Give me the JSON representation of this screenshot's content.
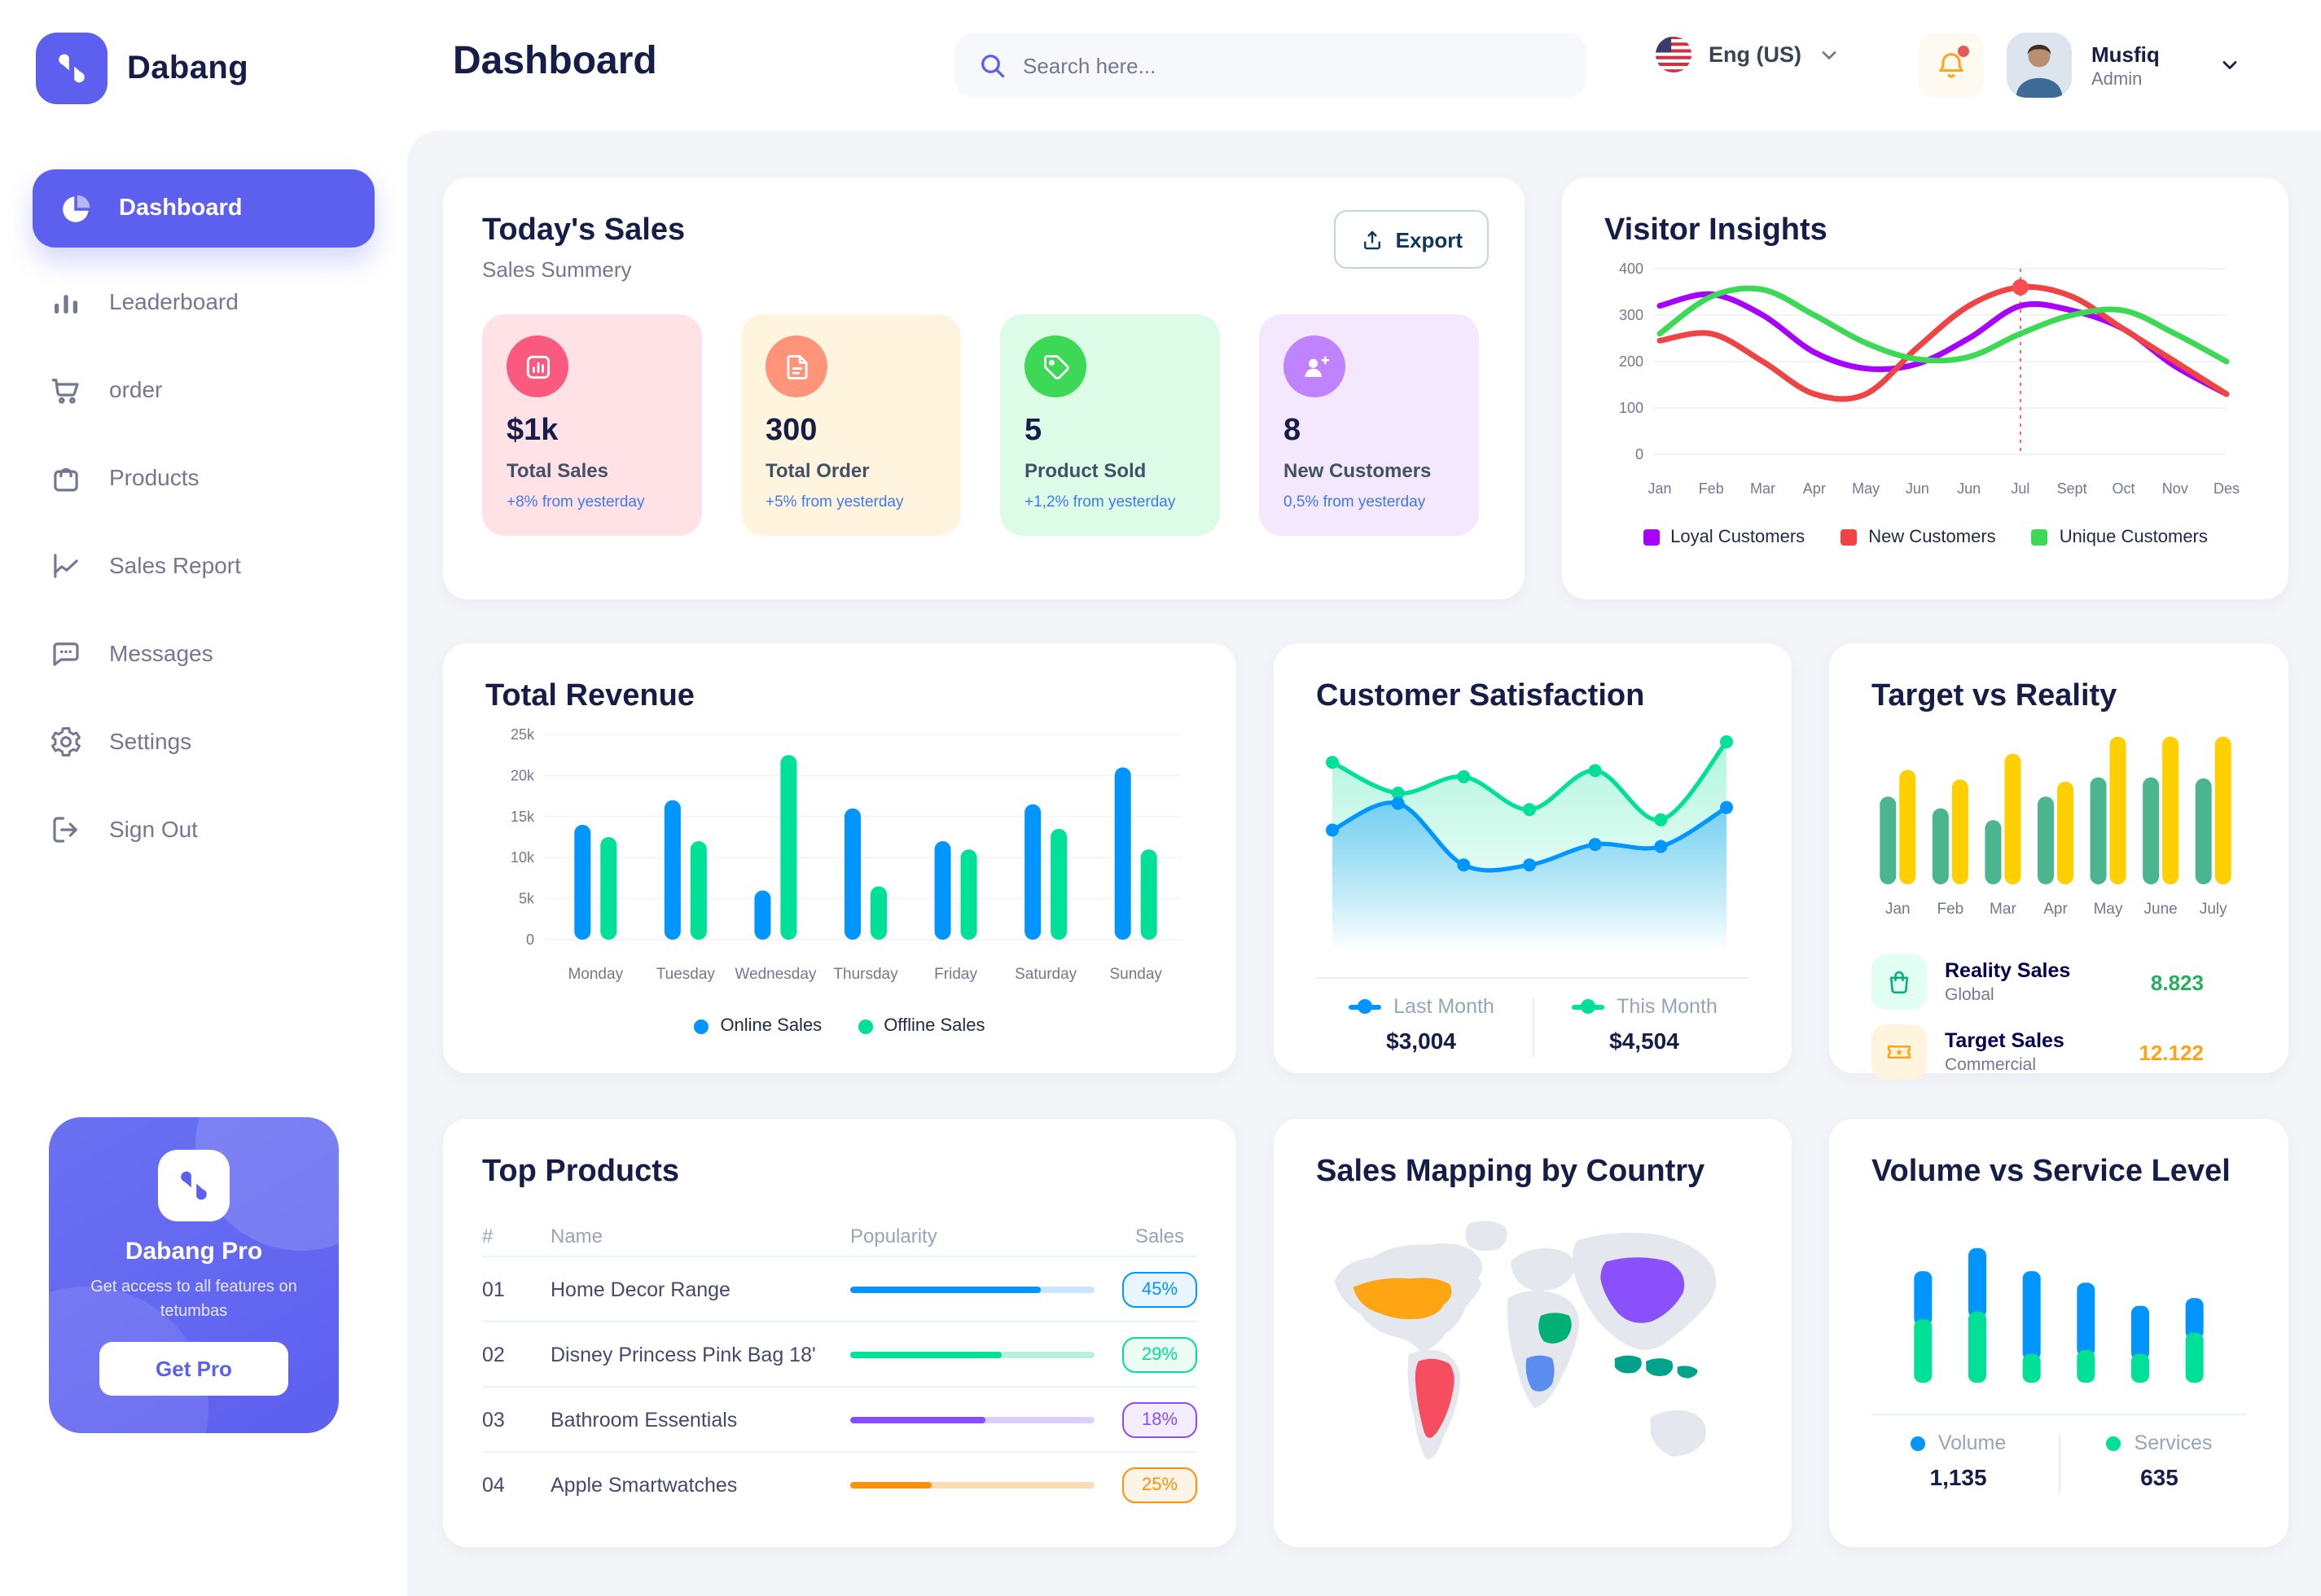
{
  "brand": {
    "name": "Dabang",
    "accent_color": "#5D5FEF"
  },
  "header": {
    "page_title": "Dashboard",
    "search": {
      "placeholder": "Search here..."
    },
    "language": {
      "label": "Eng (US)"
    },
    "notifications": {
      "has_unread": true
    },
    "user": {
      "name": "Musfiq",
      "role": "Admin"
    }
  },
  "sidebar": {
    "items": [
      {
        "label": "Dashboard",
        "icon": "pie-chart-icon",
        "active": true
      },
      {
        "label": "Leaderboard",
        "icon": "ranking-icon",
        "active": false
      },
      {
        "label": "order",
        "icon": "cart-icon",
        "active": false
      },
      {
        "label": "Products",
        "icon": "bag-icon",
        "active": false
      },
      {
        "label": "Sales Report",
        "icon": "line-chart-icon",
        "active": false
      },
      {
        "label": "Messages",
        "icon": "message-icon",
        "active": false
      },
      {
        "label": "Settings",
        "icon": "gear-icon",
        "active": false
      },
      {
        "label": "Sign Out",
        "icon": "sign-out-icon",
        "active": false
      }
    ],
    "pro_card": {
      "title": "Dabang Pro",
      "subtitle": "Get access to all features on tetumbas",
      "button_label": "Get Pro"
    }
  },
  "todays_sales": {
    "title": "Today's Sales",
    "subtitle": "Sales Summery",
    "export_label": "Export",
    "stats": [
      {
        "value": "$1k",
        "label": "Total Sales",
        "delta": "+8% from yesterday",
        "bg": "#FFE2E5",
        "icon_bg": "#FA5A7D",
        "icon": "bar-chart-icon"
      },
      {
        "value": "300",
        "label": "Total Order",
        "delta": "+5% from yesterday",
        "bg": "#FFF4DE",
        "icon_bg": "#FF947A",
        "icon": "document-icon"
      },
      {
        "value": "5",
        "label": "Product Sold",
        "delta": "+1,2% from yesterday",
        "bg": "#DCFCE7",
        "icon_bg": "#3CD856",
        "icon": "tag-icon"
      },
      {
        "value": "8",
        "label": "New Customers",
        "delta": "0,5% from yesterday",
        "bg": "#F3E8FF",
        "icon_bg": "#BF83FF",
        "icon": "user-plus-icon"
      }
    ]
  },
  "chart_data": [
    {
      "id": "visitor_insights",
      "type": "line",
      "title": "Visitor Insights",
      "x": [
        "Jan",
        "Feb",
        "Mar",
        "Apr",
        "May",
        "Jun",
        "Jun",
        "Jul",
        "Sept",
        "Oct",
        "Nov",
        "Des"
      ],
      "ylim": [
        0,
        400
      ],
      "yticks": [
        0,
        100,
        200,
        300,
        400
      ],
      "grid": true,
      "legend_position": "bottom",
      "series": [
        {
          "name": "Loyal Customers",
          "color": "#A700FF",
          "values": [
            320,
            345,
            300,
            220,
            185,
            195,
            250,
            320,
            310,
            270,
            190,
            130
          ]
        },
        {
          "name": "New Customers",
          "color": "#EF4444",
          "values": [
            245,
            260,
            200,
            130,
            130,
            230,
            320,
            360,
            340,
            270,
            200,
            130
          ]
        },
        {
          "name": "Unique Customers",
          "color": "#3CD856",
          "values": [
            260,
            340,
            355,
            300,
            240,
            205,
            210,
            260,
            300,
            310,
            260,
            200
          ]
        }
      ],
      "marker": {
        "series": "New Customers",
        "x_index": 7,
        "value": 360
      }
    },
    {
      "id": "total_revenue",
      "type": "bar",
      "title": "Total Revenue",
      "categories": [
        "Monday",
        "Tuesday",
        "Wednesday",
        "Thursday",
        "Friday",
        "Saturday",
        "Sunday"
      ],
      "ylim": [
        0,
        25000
      ],
      "yticks": [
        0,
        5000,
        10000,
        15000,
        20000,
        25000
      ],
      "ytick_labels": [
        "0",
        "5k",
        "10k",
        "15k",
        "20k",
        "25k"
      ],
      "grid": true,
      "legend_position": "bottom",
      "series": [
        {
          "name": "Online Sales",
          "color": "#0095FF",
          "values": [
            14000,
            17000,
            6000,
            16000,
            12000,
            16500,
            21000
          ]
        },
        {
          "name": "Offline Sales",
          "color": "#00E096",
          "values": [
            12500,
            12000,
            22500,
            6500,
            11000,
            13500,
            11000
          ]
        }
      ]
    },
    {
      "id": "customer_satisfaction",
      "type": "area",
      "title": "Customer Satisfaction",
      "ylim": [
        0,
        100
      ],
      "legend_position": "bottom",
      "series": [
        {
          "name": "Last Month",
          "color": "#0095FF",
          "total": "$3,004",
          "values": [
            55,
            68,
            38,
            38,
            48,
            47,
            66
          ]
        },
        {
          "name": "This Month",
          "color": "#00E096",
          "total": "$4,504",
          "values": [
            88,
            73,
            81,
            65,
            84,
            60,
            98
          ]
        }
      ]
    },
    {
      "id": "target_vs_reality",
      "type": "bar",
      "title": "Target vs Reality",
      "categories": [
        "Jan",
        "Feb",
        "Mar",
        "Apr",
        "May",
        "June",
        "July"
      ],
      "ylim": [
        0,
        14
      ],
      "series": [
        {
          "name": "Reality Sales",
          "color": "#4AB58E",
          "values": [
            8.2,
            7.1,
            6.0,
            8.2,
            10.0,
            10.0,
            9.9
          ]
        },
        {
          "name": "Target Sales",
          "color": "#FFCF00",
          "values": [
            10.7,
            9.8,
            12.2,
            9.6,
            13.8,
            13.8,
            13.8
          ]
        }
      ],
      "legend": [
        {
          "label": "Reality Sales",
          "sub": "Global",
          "value": "8.823",
          "value_color": "#27AE60",
          "icon": "shopping-bag-icon",
          "icon_color": "#00B074",
          "icon_bg": "#E2FFF3"
        },
        {
          "label": "Target Sales",
          "sub": "Commercial",
          "value": "12.122",
          "value_color": "#FFA412",
          "icon": "ticket-icon",
          "icon_color": "#FFA412",
          "icon_bg": "#FFF4DE"
        }
      ]
    },
    {
      "id": "volume_vs_service",
      "type": "stacked-bar",
      "title": "Volume vs Service Level",
      "legend_position": "bottom",
      "series": [
        {
          "name": "Volume",
          "color": "#0095FF",
          "total": "1,135",
          "values": [
            25,
            33,
            43,
            35,
            25,
            18
          ]
        },
        {
          "name": "Services",
          "color": "#00E096",
          "total": "635",
          "values": [
            33,
            37,
            15,
            17,
            15,
            26
          ]
        }
      ]
    },
    {
      "id": "top_products",
      "type": "table",
      "title": "Top Products",
      "columns": [
        "#",
        "Name",
        "Popularity",
        "Sales"
      ],
      "rows": [
        {
          "rank": "01",
          "name": "Home Decor Range",
          "popularity": 78,
          "sales": "45%",
          "color": "#0095FF",
          "track": "#CDE4FF",
          "badge_bg": "#EAF6FF"
        },
        {
          "rank": "02",
          "name": "Disney Princess Pink Bag 18'",
          "popularity": 62,
          "sales": "29%",
          "color": "#00E096",
          "track": "#B9F2DC",
          "badge_bg": "#EBFCF4"
        },
        {
          "rank": "03",
          "name": "Bathroom Essentials",
          "popularity": 55,
          "sales": "18%",
          "color": "#884DFF",
          "track": "#DCCFFF",
          "badge_bg": "#F4EDFF"
        },
        {
          "rank": "04",
          "name": "Apple Smartwatches",
          "popularity": 33,
          "sales": "25%",
          "color": "#FF8F0D",
          "track": "#FFDBB5",
          "badge_bg": "#FFF4E5"
        }
      ]
    },
    {
      "id": "sales_mapping",
      "type": "map",
      "title": "Sales Mapping by Country",
      "countries": [
        {
          "name": "United States",
          "color": "#FFA412"
        },
        {
          "name": "Brazil",
          "color": "#F64E60"
        },
        {
          "name": "Saudi Arabia",
          "color": "#00B074"
        },
        {
          "name": "DR Congo",
          "color": "#5B8DEF"
        },
        {
          "name": "China",
          "color": "#8950FC"
        },
        {
          "name": "Indonesia",
          "color": "#00A389"
        }
      ]
    }
  ]
}
